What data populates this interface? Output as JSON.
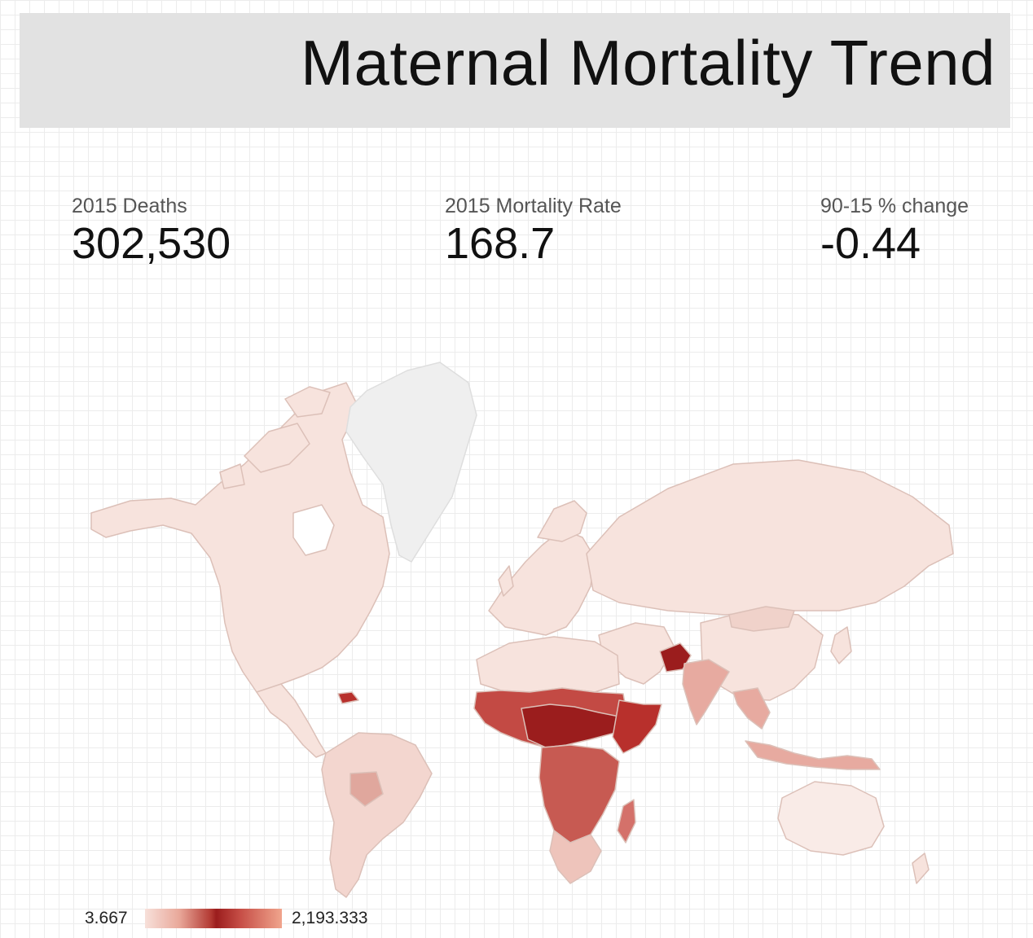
{
  "header": {
    "title": "Maternal Mortality Trend"
  },
  "kpis": [
    {
      "label": "2015 Deaths",
      "value": "302,530"
    },
    {
      "label": "2015 Mortality Rate",
      "value": "168.7"
    },
    {
      "label": "90-15 % change",
      "value": "-0.44"
    }
  ],
  "legend": {
    "min": "3.667",
    "max": "2,193.333"
  },
  "colors": {
    "title_bg": "#e2e2e2",
    "no_data": "#efefef",
    "low": "#f7e3dd",
    "mid": "#e7aaa0",
    "high": "#b8302c",
    "highest": "#9b1d1d",
    "border": "#ddc2bb"
  }
}
